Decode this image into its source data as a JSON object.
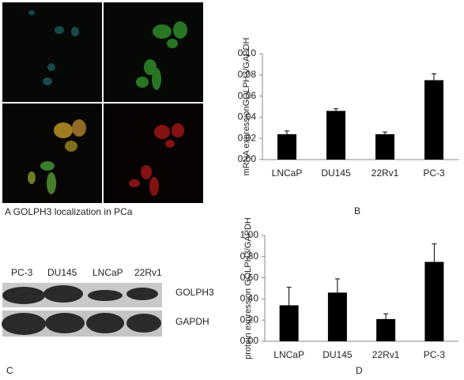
{
  "panel_a": {
    "caption": "A  GOLPH3 localization  in PCa"
  },
  "panel_c": {
    "label": "C",
    "lanes": [
      "PC-3",
      "DU145",
      "LNCaP",
      "22Rv1"
    ],
    "bands": [
      "GOLPH3",
      "GAPDH"
    ]
  },
  "chart_data": [
    {
      "type": "bar",
      "panel_label": "B",
      "ylabel": "mRNA expressionGOLPH3/GAPDH",
      "categories": [
        "LNCaP",
        "DU145",
        "22Rv1",
        "PC-3"
      ],
      "values": [
        0.024,
        0.046,
        0.024,
        0.075
      ],
      "errors": [
        0.003,
        0.002,
        0.002,
        0.006
      ],
      "color": "#000000",
      "ylim": [
        0,
        0.1
      ],
      "yticks": [
        {
          "value": 0,
          "label": "0.00"
        },
        {
          "value": 0.02,
          "label": "0.02"
        },
        {
          "value": 0.04,
          "label": "0.04"
        },
        {
          "value": 0.06,
          "label": "0.06"
        },
        {
          "value": 0.08,
          "label": "0.08"
        },
        {
          "value": 0.1,
          "label": "0.10"
        }
      ]
    },
    {
      "type": "bar",
      "panel_label": "D",
      "ylabel": "protein expression GOLPH3/GAPDH",
      "categories": [
        "LNCaP",
        "DU145",
        "22Rv1",
        "PC-3"
      ],
      "values": [
        0.34,
        0.46,
        0.21,
        0.75
      ],
      "errors": [
        0.17,
        0.13,
        0.05,
        0.17
      ],
      "color": "#000000",
      "ylim": [
        0,
        1
      ],
      "yticks": [
        {
          "value": 0,
          "label": "0.00"
        },
        {
          "value": 0.2,
          "label": "0.20"
        },
        {
          "value": 0.4,
          "label": "0.40"
        },
        {
          "value": 0.6,
          "label": "0.60"
        },
        {
          "value": 0.8,
          "label": "0.80"
        },
        {
          "value": 1,
          "label": "1.00"
        }
      ]
    }
  ]
}
